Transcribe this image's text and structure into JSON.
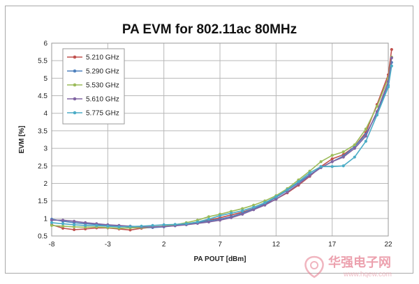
{
  "chart_data": {
    "type": "line",
    "title": "PA EVM for 802.11ac 80MHz",
    "xlabel": "PA POUT [dBm]",
    "ylabel": "EVM [%]",
    "xlim": [
      -8,
      22
    ],
    "ylim": [
      0.5,
      6
    ],
    "xticks": [
      "-8",
      "-3",
      "2",
      "7",
      "12",
      "17",
      "22"
    ],
    "xtick_values": [
      -8,
      -3,
      2,
      7,
      12,
      17,
      22
    ],
    "yticks": [
      "0.5",
      "1",
      "1.5",
      "2",
      "2.5",
      "3",
      "3.5",
      "4",
      "4.5",
      "5",
      "5.5",
      "6"
    ],
    "ytick_values": [
      0.5,
      1,
      1.5,
      2,
      2.5,
      3,
      3.5,
      4,
      4.5,
      5,
      5.5,
      6
    ],
    "grid": true,
    "legend_position": "top-left",
    "series": [
      {
        "name": "5.210 GHz",
        "color": "#c0504d",
        "points": [
          [
            -8,
            0.82
          ],
          [
            -7,
            0.72
          ],
          [
            -6,
            0.68
          ],
          [
            -5,
            0.7
          ],
          [
            -4,
            0.73
          ],
          [
            -3,
            0.73
          ],
          [
            -2,
            0.7
          ],
          [
            -1,
            0.67
          ],
          [
            0,
            0.72
          ],
          [
            1,
            0.75
          ],
          [
            2,
            0.78
          ],
          [
            3,
            0.8
          ],
          [
            4,
            0.83
          ],
          [
            5,
            0.88
          ],
          [
            6,
            0.95
          ],
          [
            7,
            1.02
          ],
          [
            8,
            1.1
          ],
          [
            9,
            1.18
          ],
          [
            10,
            1.28
          ],
          [
            11,
            1.4
          ],
          [
            12,
            1.55
          ],
          [
            13,
            1.73
          ],
          [
            14,
            1.95
          ],
          [
            15,
            2.2
          ],
          [
            16,
            2.48
          ],
          [
            17,
            2.7
          ],
          [
            18,
            2.82
          ],
          [
            19,
            3.05
          ],
          [
            20,
            3.45
          ],
          [
            21,
            4.25
          ],
          [
            22,
            5.1
          ],
          [
            22.3,
            5.82
          ]
        ]
      },
      {
        "name": "5.290 GHz",
        "color": "#4f81bd",
        "points": [
          [
            -8,
            0.98
          ],
          [
            -7,
            0.92
          ],
          [
            -6,
            0.88
          ],
          [
            -5,
            0.85
          ],
          [
            -4,
            0.83
          ],
          [
            -3,
            0.8
          ],
          [
            -2,
            0.78
          ],
          [
            -1,
            0.75
          ],
          [
            0,
            0.74
          ],
          [
            1,
            0.74
          ],
          [
            2,
            0.76
          ],
          [
            3,
            0.8
          ],
          [
            4,
            0.84
          ],
          [
            5,
            0.88
          ],
          [
            6,
            0.93
          ],
          [
            7,
            0.98
          ],
          [
            8,
            1.05
          ],
          [
            9,
            1.15
          ],
          [
            10,
            1.28
          ],
          [
            11,
            1.42
          ],
          [
            12,
            1.6
          ],
          [
            13,
            1.8
          ],
          [
            14,
            2.02
          ],
          [
            15,
            2.25
          ],
          [
            16,
            2.45
          ],
          [
            17,
            2.62
          ],
          [
            18,
            2.78
          ],
          [
            19,
            3.05
          ],
          [
            20,
            3.4
          ],
          [
            21,
            4.0
          ],
          [
            22,
            4.8
          ],
          [
            22.3,
            5.45
          ]
        ]
      },
      {
        "name": "5.530 GHz",
        "color": "#9bbb59",
        "points": [
          [
            -8,
            0.8
          ],
          [
            -7,
            0.78
          ],
          [
            -6,
            0.76
          ],
          [
            -5,
            0.75
          ],
          [
            -4,
            0.76
          ],
          [
            -3,
            0.74
          ],
          [
            -2,
            0.72
          ],
          [
            -1,
            0.73
          ],
          [
            0,
            0.74
          ],
          [
            1,
            0.76
          ],
          [
            2,
            0.78
          ],
          [
            3,
            0.82
          ],
          [
            4,
            0.88
          ],
          [
            5,
            0.95
          ],
          [
            6,
            1.05
          ],
          [
            7,
            1.12
          ],
          [
            8,
            1.2
          ],
          [
            9,
            1.28
          ],
          [
            10,
            1.38
          ],
          [
            11,
            1.5
          ],
          [
            12,
            1.65
          ],
          [
            13,
            1.85
          ],
          [
            14,
            2.1
          ],
          [
            15,
            2.35
          ],
          [
            16,
            2.62
          ],
          [
            17,
            2.8
          ],
          [
            18,
            2.9
          ],
          [
            19,
            3.1
          ],
          [
            20,
            3.55
          ],
          [
            21,
            4.2
          ],
          [
            22,
            5.0
          ],
          [
            22.3,
            5.6
          ]
        ]
      },
      {
        "name": "5.610 GHz",
        "color": "#8064a2",
        "points": [
          [
            -8,
            0.95
          ],
          [
            -7,
            0.95
          ],
          [
            -6,
            0.92
          ],
          [
            -5,
            0.88
          ],
          [
            -4,
            0.85
          ],
          [
            -3,
            0.82
          ],
          [
            -2,
            0.8
          ],
          [
            -1,
            0.78
          ],
          [
            0,
            0.76
          ],
          [
            1,
            0.76
          ],
          [
            2,
            0.77
          ],
          [
            3,
            0.79
          ],
          [
            4,
            0.82
          ],
          [
            5,
            0.86
          ],
          [
            6,
            0.9
          ],
          [
            7,
            0.95
          ],
          [
            8,
            1.02
          ],
          [
            9,
            1.12
          ],
          [
            10,
            1.25
          ],
          [
            11,
            1.38
          ],
          [
            12,
            1.55
          ],
          [
            13,
            1.75
          ],
          [
            14,
            1.98
          ],
          [
            15,
            2.22
          ],
          [
            16,
            2.45
          ],
          [
            17,
            2.62
          ],
          [
            18,
            2.75
          ],
          [
            19,
            3.0
          ],
          [
            20,
            3.35
          ],
          [
            21,
            4.05
          ],
          [
            22,
            4.9
          ],
          [
            22.3,
            5.58
          ]
        ]
      },
      {
        "name": "5.775 GHz",
        "color": "#4bacc6",
        "points": [
          [
            -8,
            0.88
          ],
          [
            -7,
            0.85
          ],
          [
            -6,
            0.82
          ],
          [
            -5,
            0.8
          ],
          [
            -4,
            0.8
          ],
          [
            -3,
            0.78
          ],
          [
            -2,
            0.76
          ],
          [
            -1,
            0.77
          ],
          [
            0,
            0.78
          ],
          [
            1,
            0.8
          ],
          [
            2,
            0.82
          ],
          [
            3,
            0.83
          ],
          [
            4,
            0.85
          ],
          [
            5,
            0.9
          ],
          [
            6,
            0.98
          ],
          [
            7,
            1.08
          ],
          [
            8,
            1.15
          ],
          [
            9,
            1.22
          ],
          [
            10,
            1.32
          ],
          [
            11,
            1.45
          ],
          [
            12,
            1.62
          ],
          [
            13,
            1.82
          ],
          [
            14,
            2.05
          ],
          [
            15,
            2.3
          ],
          [
            16,
            2.48
          ],
          [
            17,
            2.48
          ],
          [
            18,
            2.5
          ],
          [
            19,
            2.75
          ],
          [
            20,
            3.2
          ],
          [
            21,
            3.95
          ],
          [
            22,
            4.75
          ],
          [
            22.3,
            5.35
          ]
        ]
      }
    ]
  },
  "watermark": {
    "text": "华强电子网",
    "url": "www.hqew.com"
  }
}
